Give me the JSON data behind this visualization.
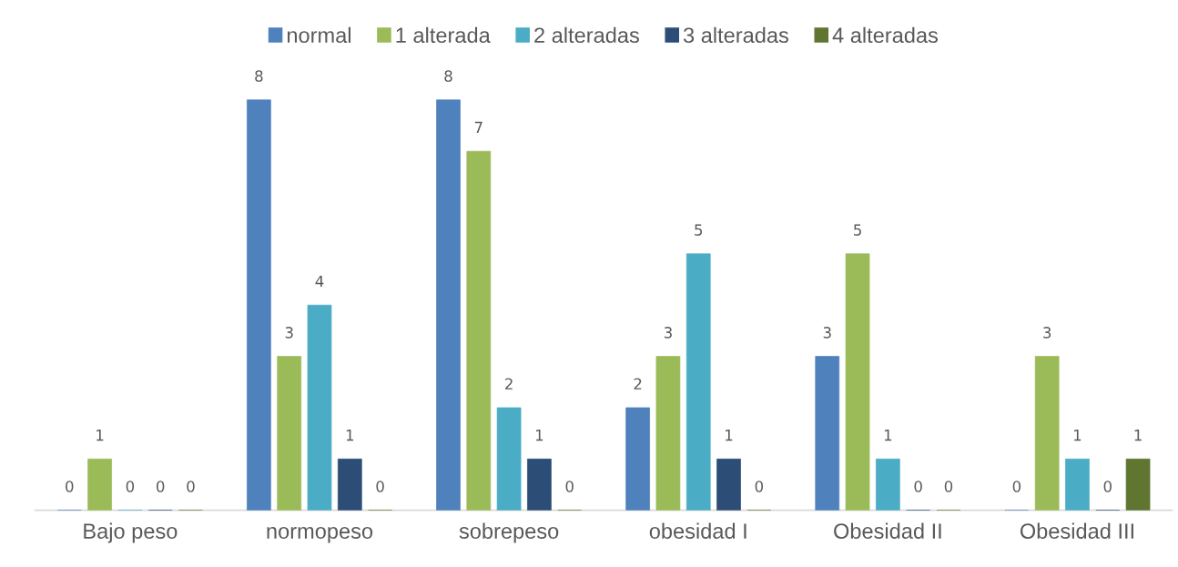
{
  "chart_data": {
    "type": "bar",
    "categories": [
      "Bajo peso",
      "normopeso",
      "sobrepeso",
      "obesidad I",
      "Obesidad II",
      "Obesidad III"
    ],
    "series": [
      {
        "name": "normal",
        "color": "#4f81bd",
        "values": [
          0,
          8,
          8,
          2,
          3,
          0
        ]
      },
      {
        "name": "1 alterada",
        "color": "#9bbb59",
        "values": [
          1,
          3,
          7,
          3,
          5,
          3
        ]
      },
      {
        "name": "2 alteradas",
        "color": "#4bacc6",
        "values": [
          0,
          4,
          2,
          5,
          1,
          1
        ]
      },
      {
        "name": "3 alteradas",
        "color": "#2c4d75",
        "values": [
          0,
          1,
          1,
          1,
          0,
          0
        ]
      },
      {
        "name": "4 alteradas",
        "color": "#5f7530",
        "values": [
          0,
          0,
          0,
          0,
          0,
          1
        ]
      }
    ],
    "data_labels": true,
    "legend": "top",
    "grid": false
  }
}
